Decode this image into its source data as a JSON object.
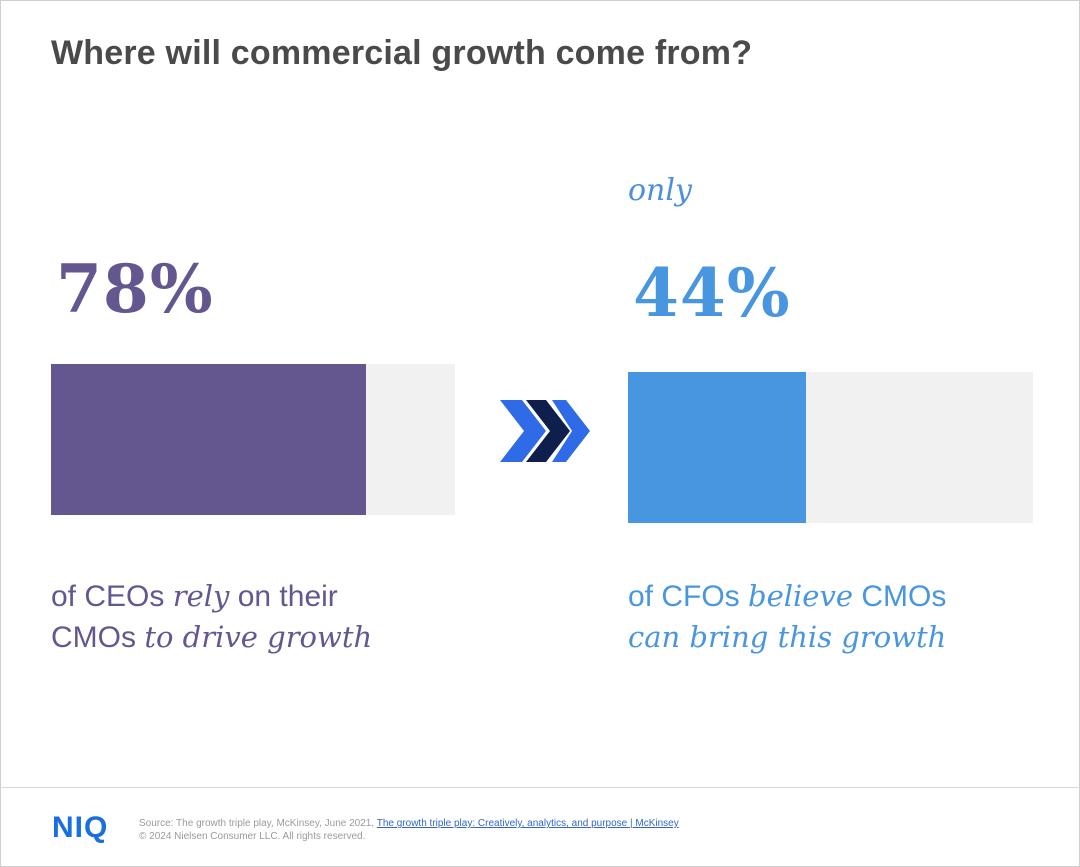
{
  "title": "Where will commercial growth come from?",
  "colors": {
    "purple": "#645790",
    "blue": "#4896e0",
    "track": "#f1f1f1",
    "arrow_light": "#2f6be6",
    "arrow_dark": "#0f1f4d"
  },
  "chart_data": {
    "type": "bar",
    "title": "Where will commercial growth come from?",
    "categories": [
      "CEOs rely on their CMOs to drive growth",
      "CFOs believe CMOs can bring this growth"
    ],
    "values": [
      78,
      44
    ],
    "ylim": [
      0,
      100
    ],
    "unit": "%"
  },
  "left": {
    "value_label": "78%",
    "caption_pre": "of CEOs ",
    "caption_em1": "rely",
    "caption_mid": " on their",
    "caption_line2": "CMOs ",
    "caption_em2": "to drive growth"
  },
  "right": {
    "qualifier": "only",
    "value_label": "44%",
    "caption_pre": "of CFOs ",
    "caption_em1": "believe",
    "caption_mid": " CMOs",
    "caption_em2": "can bring this growth"
  },
  "arrows_icon": "double-chevron-right-icon",
  "footer": {
    "logo": "NIQ",
    "source_text": "Source: The growth triple play, McKinsey, June 2021, ",
    "source_link": "The growth triple play: Creatively, analytics, and purpose | McKinsey",
    "copyright": "© 2024 Nielsen Consumer LLC. All rights reserved."
  }
}
